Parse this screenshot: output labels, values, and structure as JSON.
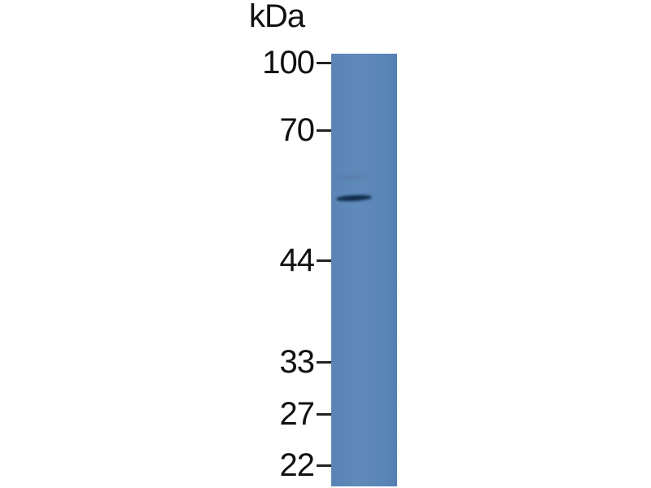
{
  "unit_label": "kDa",
  "markers": [
    {
      "label": "100",
      "kda": 100
    },
    {
      "label": "70",
      "kda": 70
    },
    {
      "label": "44",
      "kda": 44
    },
    {
      "label": "33",
      "kda": 33
    },
    {
      "label": "27",
      "kda": 27
    },
    {
      "label": "22",
      "kda": 22
    }
  ],
  "colors": {
    "membrane": "#5b86b8",
    "band": "#0f2a4a",
    "text": "#111111"
  }
}
